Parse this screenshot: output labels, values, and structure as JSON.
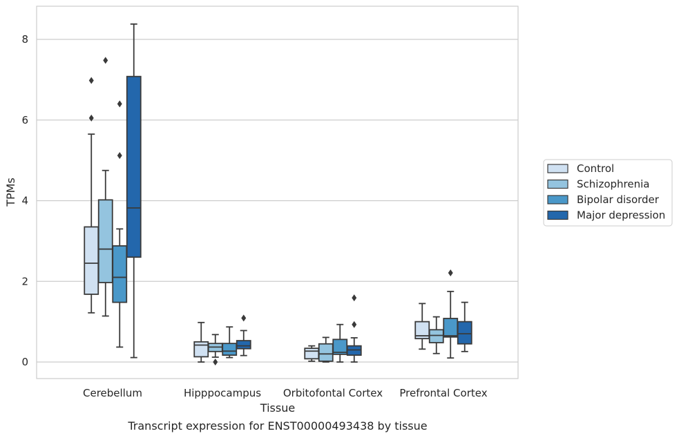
{
  "chart_data": {
    "type": "box",
    "title": "",
    "caption": "Transcript expression for ENST00000493438 by tissue",
    "xlabel": "Tissue",
    "ylabel": "TPMs",
    "ylim": [
      -0.4,
      8.8
    ],
    "yticks": [
      0,
      2,
      4,
      6,
      8
    ],
    "grid": true,
    "legend_position": "right",
    "categories": [
      "Cerebellum",
      "Hipppocampus",
      "Orbitofontal Cortex",
      "Prefrontal Cortex"
    ],
    "series": [
      {
        "name": "Control",
        "color": "#d0e1f2",
        "boxes": [
          {
            "whisker_low": 1.22,
            "q1": 1.68,
            "median": 2.45,
            "q3": 3.35,
            "whisker_high": 5.65,
            "outliers": [
              6.05,
              6.98
            ]
          },
          {
            "whisker_low": 0.0,
            "q1": 0.13,
            "median": 0.42,
            "q3": 0.5,
            "whisker_high": 0.98,
            "outliers": []
          },
          {
            "whisker_low": 0.02,
            "q1": 0.08,
            "median": 0.27,
            "q3": 0.34,
            "whisker_high": 0.4,
            "outliers": []
          },
          {
            "whisker_low": 0.32,
            "q1": 0.58,
            "median": 0.65,
            "q3": 1.0,
            "whisker_high": 1.45,
            "outliers": []
          }
        ]
      },
      {
        "name": "Schizophrenia",
        "color": "#94c4df",
        "boxes": [
          {
            "whisker_low": 1.14,
            "q1": 1.97,
            "median": 2.8,
            "q3": 4.02,
            "whisker_high": 4.75,
            "outliers": [
              7.48
            ]
          },
          {
            "whisker_low": 0.12,
            "q1": 0.26,
            "median": 0.37,
            "q3": 0.46,
            "whisker_high": 0.68,
            "outliers": [
              0.0
            ]
          },
          {
            "whisker_low": 0.0,
            "q1": 0.02,
            "median": 0.2,
            "q3": 0.45,
            "whisker_high": 0.61,
            "outliers": []
          },
          {
            "whisker_low": 0.21,
            "q1": 0.48,
            "median": 0.66,
            "q3": 0.8,
            "whisker_high": 1.12,
            "outliers": []
          }
        ]
      },
      {
        "name": "Bipolar disorder",
        "color": "#4a98c9",
        "boxes": [
          {
            "whisker_low": 0.37,
            "q1": 1.48,
            "median": 2.1,
            "q3": 2.88,
            "whisker_high": 3.3,
            "outliers": [
              5.12,
              6.4
            ]
          },
          {
            "whisker_low": 0.11,
            "q1": 0.17,
            "median": 0.27,
            "q3": 0.46,
            "whisker_high": 0.87,
            "outliers": []
          },
          {
            "whisker_low": 0.0,
            "q1": 0.19,
            "median": 0.24,
            "q3": 0.56,
            "whisker_high": 0.93,
            "outliers": []
          },
          {
            "whisker_low": 0.1,
            "q1": 0.62,
            "median": 0.65,
            "q3": 1.08,
            "whisker_high": 1.75,
            "outliers": [
              2.21
            ]
          }
        ]
      },
      {
        "name": "Major depression",
        "color": "#2367ac",
        "boxes": [
          {
            "whisker_low": 0.11,
            "q1": 2.6,
            "median": 3.82,
            "q3": 7.08,
            "whisker_high": 8.38,
            "outliers": []
          },
          {
            "whisker_low": 0.16,
            "q1": 0.33,
            "median": 0.4,
            "q3": 0.53,
            "whisker_high": 0.78,
            "outliers": [
              1.09
            ]
          },
          {
            "whisker_low": 0.0,
            "q1": 0.17,
            "median": 0.3,
            "q3": 0.4,
            "whisker_high": 0.6,
            "outliers": [
              0.93,
              1.59
            ]
          },
          {
            "whisker_low": 0.26,
            "q1": 0.45,
            "median": 0.7,
            "q3": 1.0,
            "whisker_high": 1.48,
            "outliers": []
          }
        ]
      }
    ]
  }
}
